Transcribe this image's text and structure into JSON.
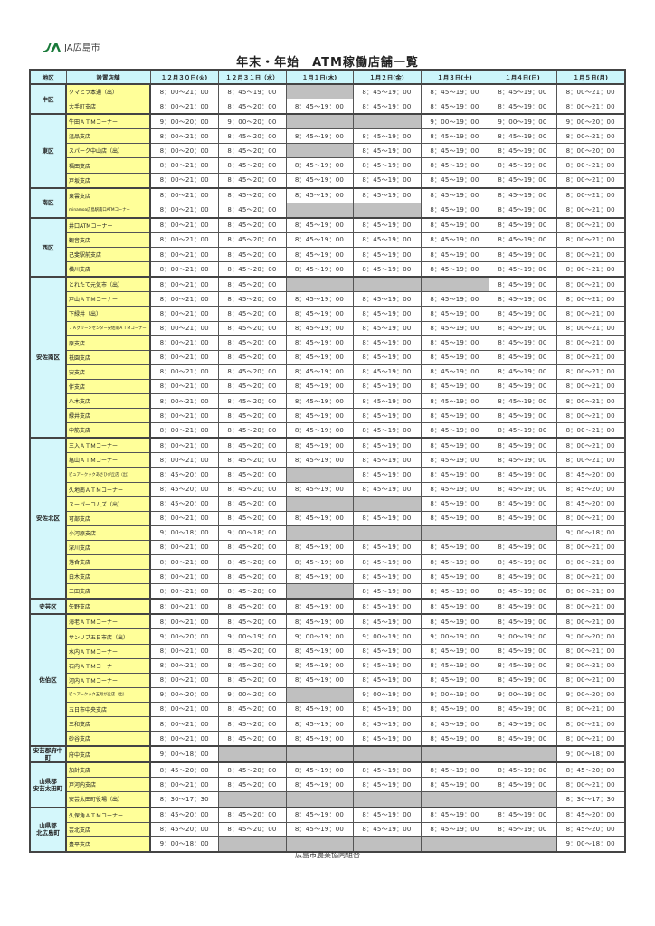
{
  "logo": {
    "text": "JA広島市"
  },
  "title": "年末・年始　ATM稼働店舗一覧",
  "headers": [
    "地区",
    "設置店舗",
    "１２月３０日(火)",
    "１２月３１日（水）",
    "１月１日(木)",
    "１月２日(金)",
    "１月３日(土)",
    "１月４日(日)",
    "１月５日(月)"
  ],
  "colors": {
    "header": "#ccf6fb",
    "region": "#d4f7fb",
    "store": "#ffff99",
    "closed": "#c0c0c0"
  },
  "regions": [
    {
      "name": "中区",
      "rows": [
        {
          "name": "クマヒラ本通（出）",
          "times": [
            "8：00～21：00",
            "8：45～19：00",
            null,
            "8：45～19：00",
            "8：45～19：00",
            "8：45～19：00",
            "8：00～21：00"
          ]
        },
        {
          "name": "大手町支店",
          "times": [
            "8：00～21：00",
            "8：45～20：00",
            "8：45～19：00",
            "8：45～19：00",
            "8：45～19：00",
            "8：45～19：00",
            "8：00～21：00"
          ]
        }
      ]
    },
    {
      "name": "東区",
      "rows": [
        {
          "name": "牛田ＡＴＭコーナー",
          "times": [
            "9：00～20：00",
            "9：00～20：00",
            null,
            null,
            "9：00～19：00",
            "9：00～19：00",
            "9：00～20：00"
          ]
        },
        {
          "name": "温品支店",
          "times": [
            "8：00～21：00",
            "8：45～20：00",
            "8：45～19：00",
            "8：45～19：00",
            "8：45～19：00",
            "8：45～19：00",
            "8：00～21：00"
          ]
        },
        {
          "name": "スパーク中山店（出）",
          "times": [
            "8：00～20：00",
            "8：45～20：00",
            null,
            "8：45～19：00",
            "8：45～19：00",
            "8：45～19：00",
            "8：00～20：00"
          ]
        },
        {
          "name": "福田支店",
          "times": [
            "8：00～21：00",
            "8：45～20：00",
            "8：45～19：00",
            "8：45～19：00",
            "8：45～19：00",
            "8：45～19：00",
            "8：00～21：00"
          ]
        },
        {
          "name": "戸坂支店",
          "times": [
            "8：00～21：00",
            "8：45～20：00",
            "8：45～19：00",
            "8：45～19：00",
            "8：45～19：00",
            "8：45～19：00",
            "8：00～21：00"
          ]
        }
      ]
    },
    {
      "name": "南区",
      "rows": [
        {
          "name": "東雲支店",
          "times": [
            "8：00～21：00",
            "8：45～20：00",
            "8：45～19：00",
            "8：45～19：00",
            "8：45～19：00",
            "8：45～19：00",
            "8：00～21：00"
          ]
        },
        {
          "name": "minamoa広島駅南口ATMコーナー",
          "small": true,
          "times": [
            "8：00～21：00",
            "8：45～20：00",
            null,
            null,
            "8：45～19：00",
            "8：45～19：00",
            "8：00～21：00"
          ]
        }
      ]
    },
    {
      "name": "西区",
      "rows": [
        {
          "name": "井口ATMコーナー",
          "times": [
            "8：00～21：00",
            "8：45～20：00",
            "8：45～19：00",
            "8：45～19：00",
            "8：45～19：00",
            "8：45～19：00",
            "8：00～21：00"
          ]
        },
        {
          "name": "観音支店",
          "times": [
            "8：00～21：00",
            "8：45～20：00",
            "8：45～19：00",
            "8：45～19：00",
            "8：45～19：00",
            "8：45～19：00",
            "8：00～21：00"
          ]
        },
        {
          "name": "己斐駅前支店",
          "times": [
            "8：00～21：00",
            "8：45～20：00",
            "8：45～19：00",
            "8：45～19：00",
            "8：45～19：00",
            "8：45～19：00",
            "8：00～21：00"
          ]
        },
        {
          "name": "横川支店",
          "times": [
            "8：00～21：00",
            "8：45～20：00",
            "8：45～19：00",
            "8：45～19：00",
            "8：45～19：00",
            "8：45～19：00",
            "8：00～21：00"
          ]
        }
      ]
    },
    {
      "name": "安佐南区",
      "rows": [
        {
          "name": "とれたて元気市（出）",
          "times": [
            "8：00～21：00",
            "8：45～20：00",
            null,
            null,
            null,
            "8：45～19：00",
            "8：00～21：00"
          ]
        },
        {
          "name": "戸山ＡＴＭコーナー",
          "times": [
            "8：00～21：00",
            "8：45～20：00",
            "8：45～19：00",
            "8：45～19：00",
            "8：45～19：00",
            "8：45～19：00",
            "8：00～21：00"
          ]
        },
        {
          "name": "下緑井（出）",
          "times": [
            "8：00～21：00",
            "8：45～20：00",
            "8：45～19：00",
            "8：45～19：00",
            "8：45～19：00",
            "8：45～19：00",
            "8：00～21：00"
          ]
        },
        {
          "name": "ＪＡグリーンセンター安佐南ＡＴＭコーナー",
          "small": true,
          "times": [
            "8：00～21：00",
            "8：45～20：00",
            "8：45～19：00",
            "8：45～19：00",
            "8：45～19：00",
            "8：45～19：00",
            "8：00～21：00"
          ]
        },
        {
          "name": "原支店",
          "times": [
            "8：00～21：00",
            "8：45～20：00",
            "8：45～19：00",
            "8：45～19：00",
            "8：45～19：00",
            "8：45～19：00",
            "8：00～21：00"
          ]
        },
        {
          "name": "祇園支店",
          "times": [
            "8：00～21：00",
            "8：45～20：00",
            "8：45～19：00",
            "8：45～19：00",
            "8：45～19：00",
            "8：45～19：00",
            "8：00～21：00"
          ]
        },
        {
          "name": "安支店",
          "times": [
            "8：00～21：00",
            "8：45～20：00",
            "8：45～19：00",
            "8：45～19：00",
            "8：45～19：00",
            "8：45～19：00",
            "8：00～21：00"
          ]
        },
        {
          "name": "伴支店",
          "times": [
            "8：00～21：00",
            "8：45～20：00",
            "8：45～19：00",
            "8：45～19：00",
            "8：45～19：00",
            "8：45～19：00",
            "8：00～21：00"
          ]
        },
        {
          "name": "八木支店",
          "times": [
            "8：00～21：00",
            "8：45～20：00",
            "8：45～19：00",
            "8：45～19：00",
            "8：45～19：00",
            "8：45～19：00",
            "8：00～21：00"
          ]
        },
        {
          "name": "緑井支店",
          "times": [
            "8：00～21：00",
            "8：45～20：00",
            "8：45～19：00",
            "8：45～19：00",
            "8：45～19：00",
            "8：45～19：00",
            "8：00～21：00"
          ]
        },
        {
          "name": "中筋支店",
          "times": [
            "8：00～21：00",
            "8：45～20：00",
            "8：45～19：00",
            "8：45～19：00",
            "8：45～19：00",
            "8：45～19：00",
            "8：00～21：00"
          ]
        }
      ]
    },
    {
      "name": "安佐北区",
      "rows": [
        {
          "name": "三入ＡＴＭコーナー",
          "times": [
            "8：00～21：00",
            "8：45～20：00",
            "8：45～19：00",
            "8：45～19：00",
            "8：45～19：00",
            "8：45～19：00",
            "8：00～21：00"
          ]
        },
        {
          "name": "亀山ＡＴＭコーナー",
          "times": [
            "8：00～21：00",
            "8：45～20：00",
            "8：45～19：00",
            "8：45～19：00",
            "8：45～19：00",
            "8：45～19：00",
            "8：00～21：00"
          ]
        },
        {
          "name": "ピュアークックあさひが丘店（出）",
          "small": true,
          "times": [
            "8：45～20：00",
            "8：45～20：00",
            null,
            "8：45～19：00",
            "8：45～19：00",
            "8：45～19：00",
            "8：45～20：00"
          ]
        },
        {
          "name": "久地南ＡＴＭコーナー",
          "times": [
            "8：45～20：00",
            "8：45～20：00",
            "8：45～19：00",
            "8：45～19：00",
            "8：45～19：00",
            "8：45～19：00",
            "8：45～20：00"
          ]
        },
        {
          "name": "スーパーコムズ（出）",
          "times": [
            "8：45～20：00",
            "8：45～20：00",
            null,
            null,
            "8：45～19：00",
            "8：45～19：00",
            "8：45～20：00"
          ]
        },
        {
          "name": "可部支店",
          "times": [
            "8：00～21：00",
            "8：45～20：00",
            "8：45～19：00",
            "8：45～19：00",
            "8：45～19：00",
            "8：45～19：00",
            "8：00～21：00"
          ]
        },
        {
          "name": "小河原支店",
          "times": [
            "9：00～18：00",
            "9：00～18：00",
            null,
            null,
            null,
            null,
            "9：00～18：00"
          ]
        },
        {
          "name": "深川支店",
          "times": [
            "8：00～21：00",
            "8：45～20：00",
            "8：45～19：00",
            "8：45～19：00",
            "8：45～19：00",
            "8：45～19：00",
            "8：00～21：00"
          ]
        },
        {
          "name": "落合支店",
          "times": [
            "8：00～21：00",
            "8：45～20：00",
            "8：45～19：00",
            "8：45～19：00",
            "8：45～19：00",
            "8：45～19：00",
            "8：00～21：00"
          ]
        },
        {
          "name": "白木支店",
          "times": [
            "8：00～21：00",
            "8：45～20：00",
            "8：45～19：00",
            "8：45～19：00",
            "8：45～19：00",
            "8：45～19：00",
            "8：00～21：00"
          ]
        },
        {
          "name": "三田支店",
          "times": [
            "8：00～21：00",
            "8：45～20：00",
            null,
            "8：45～19：00",
            "8：45～19：00",
            "8：45～19：00",
            "8：00～21：00"
          ]
        }
      ]
    },
    {
      "name": "安芸区",
      "rows": [
        {
          "name": "矢野支店",
          "times": [
            "8：00～21：00",
            "8：45～20：00",
            "8：45～19：00",
            "8：45～19：00",
            "8：45～19：00",
            "8：45～19：00",
            "8：00～21：00"
          ]
        }
      ]
    },
    {
      "name": "佐伯区",
      "rows": [
        {
          "name": "海老ＡＴＭコーナー",
          "times": [
            "8：00～21：00",
            "8：45～20：00",
            "8：45～19：00",
            "8：45～19：00",
            "8：45～19：00",
            "8：45～19：00",
            "8：00～21：00"
          ]
        },
        {
          "name": "サンリブ五日市店（出）",
          "times": [
            "9：00～20：00",
            "9：00～19：00",
            "9：00～19：00",
            "9：00～19：00",
            "9：00～19：00",
            "9：00～19：00",
            "9：00～20：00"
          ]
        },
        {
          "name": "水内ＡＴＭコーナー",
          "times": [
            "8：00～21：00",
            "8：45～20：00",
            "8：45～19：00",
            "8：45～19：00",
            "8：45～19：00",
            "8：45～19：00",
            "8：00～21：00"
          ]
        },
        {
          "name": "石内ＡＴＭコーナー",
          "times": [
            "8：00～21：00",
            "8：45～20：00",
            "8：45～19：00",
            "8：45～19：00",
            "8：45～19：00",
            "8：45～19：00",
            "8：00～21：00"
          ]
        },
        {
          "name": "河内ＡＴＭコーナー",
          "times": [
            "8：00～21：00",
            "8：45～20：00",
            "8：45～19：00",
            "8：45～19：00",
            "8：45～19：00",
            "8：45～19：00",
            "8：00～21：00"
          ]
        },
        {
          "name": "ピュアークック五月が丘店（出）",
          "small": true,
          "times": [
            "9：00～20：00",
            "9：00～20：00",
            null,
            "9：00～19：00",
            "9：00～19：00",
            "9：00～19：00",
            "9：00～20：00"
          ]
        },
        {
          "name": "五日市中央支店",
          "times": [
            "8：00～21：00",
            "8：45～20：00",
            "8：45～19：00",
            "8：45～19：00",
            "8：45～19：00",
            "8：45～19：00",
            "8：00～21：00"
          ]
        },
        {
          "name": "三和支店",
          "times": [
            "8：00～21：00",
            "8：45～20：00",
            "8：45～19：00",
            "8：45～19：00",
            "8：45～19：00",
            "8：45～19：00",
            "8：00～21：00"
          ]
        },
        {
          "name": "砂谷支店",
          "times": [
            "8：00～21：00",
            "8：45～20：00",
            "8：45～19：00",
            "8：45～19：00",
            "8：45～19：00",
            "8：45～19：00",
            "8：00～21：00"
          ]
        }
      ]
    },
    {
      "name": "安芸郡府中町",
      "rows": [
        {
          "name": "府中支店",
          "times": [
            "9：00～18：00",
            null,
            null,
            null,
            null,
            null,
            "9：00～18：00"
          ]
        }
      ]
    },
    {
      "name": "山県郡\n安芸太田町",
      "rows": [
        {
          "name": "加計支店",
          "times": [
            "8：45～20：00",
            "8：45～20：00",
            "8：45～19：00",
            "8：45～19：00",
            "8：45～19：00",
            "8：45～19：00",
            "8：45～20：00"
          ]
        },
        {
          "name": "戸河内支店",
          "times": [
            "8：00～21：00",
            "8：45～20：00",
            "8：45～19：00",
            "8：45～19：00",
            "8：45～19：00",
            "8：45～19：00",
            "8：00～21：00"
          ]
        },
        {
          "name": "安芸太田町役場（出）",
          "times": [
            "8：30～17：30",
            null,
            null,
            null,
            null,
            null,
            "8：30～17：30"
          ]
        }
      ]
    },
    {
      "name": "山県郡\n北広島町",
      "rows": [
        {
          "name": "久保角ＡＴＭコーナー",
          "times": [
            "8：45～20：00",
            "8：45～20：00",
            "8：45～19：00",
            "8：45～19：00",
            "8：45～19：00",
            "8：45～19：00",
            "8：45～20：00"
          ]
        },
        {
          "name": "芸北支店",
          "times": [
            "8：45～20：00",
            "8：45～20：00",
            "8：45～19：00",
            "8：45～19：00",
            "8：45～19：00",
            "8：45～19：00",
            "8：45～20：00"
          ]
        },
        {
          "name": "豊平支店",
          "times": [
            "9：00～18：00",
            null,
            null,
            null,
            null,
            null,
            "9：00～18：00"
          ]
        }
      ]
    }
  ],
  "footer": "広島市農業協同組合"
}
